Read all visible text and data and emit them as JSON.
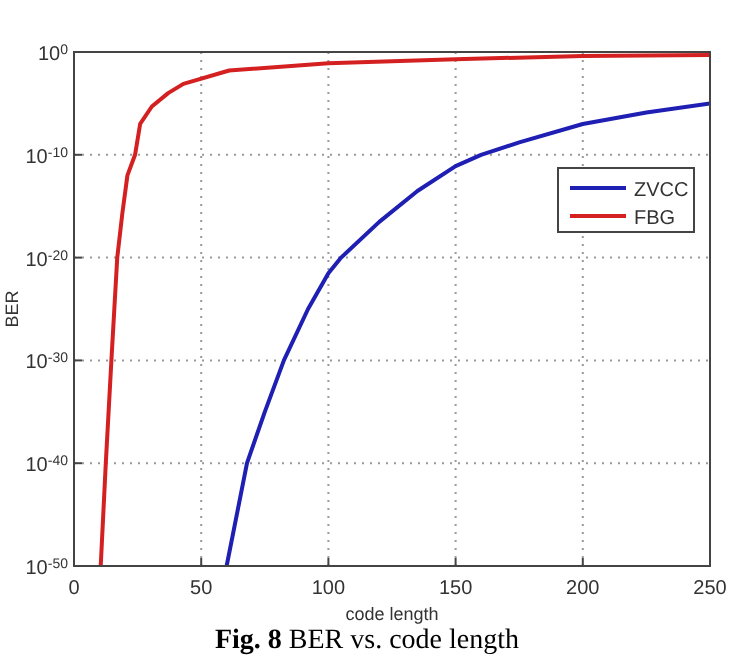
{
  "chart_data": {
    "type": "line",
    "xlabel": "code length",
    "ylabel": "BER",
    "log": "y",
    "xlim": [
      0,
      250
    ],
    "xticks": [
      0,
      50,
      100,
      150,
      200,
      250
    ],
    "ylim": [
      1e-50,
      1
    ],
    "yticks": [
      {
        "value": 1,
        "label": "10$^{0}$"
      },
      {
        "value": 1e-10,
        "label": "10$^{-10}$"
      },
      {
        "value": 1e-20,
        "label": "10$^{-20}$"
      },
      {
        "value": 1e-30,
        "label": "10$^{-30}$"
      },
      {
        "value": 1e-40,
        "label": "10$^{-40}$"
      },
      {
        "value": 1e-50,
        "label": "10$^{-50}$"
      }
    ],
    "grid": true,
    "legend": "right",
    "line_style": "solid",
    "marker": "none",
    "annotations": [
      "Fig. 8 BER vs. code length"
    ],
    "series": [
      {
        "name": "ZVCC",
        "color": "#1f1fb4",
        "x": [
          60,
          68,
          75,
          82.5,
          92,
          100,
          105,
          120,
          135,
          150,
          160,
          175,
          200,
          225,
          250
        ],
        "values": [
          1e-50,
          1e-40,
          1e-35,
          1e-30,
          1e-25,
          3e-22,
          1e-20,
          3e-17,
          3e-14,
          8e-12,
          1e-10,
          1.6e-09,
          1e-07,
          1.3e-06,
          1e-05
        ]
      },
      {
        "name": "FBG",
        "color": "#d42020",
        "x": [
          10.5,
          12.5,
          14.7,
          17,
          19,
          21,
          24,
          26,
          30.6,
          37,
          43,
          61,
          100,
          150,
          200,
          250
        ],
        "values": [
          1e-50,
          1e-40,
          1e-30,
          1e-20,
          2e-16,
          1e-12,
          1e-10,
          1e-07,
          5e-06,
          0.0001,
          0.0008,
          0.016,
          0.08,
          0.2,
          0.4,
          0.5
        ]
      }
    ]
  }
}
